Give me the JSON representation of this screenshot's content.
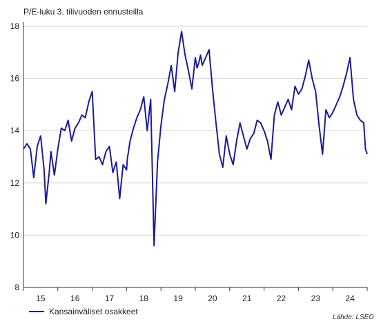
{
  "chart_data": {
    "type": "line",
    "title": "P/E-luku 3. tilivuoden ennusteilla",
    "source": "Lähde: LSEG",
    "x_tick_labels": [
      "15",
      "16",
      "17",
      "18",
      "19",
      "20",
      "21",
      "22",
      "23",
      "24"
    ],
    "x_range": [
      2015.0,
      2025.0
    ],
    "ylim": [
      8,
      18
    ],
    "y_ticks": [
      8,
      10,
      12,
      14,
      16,
      18
    ],
    "grid": {
      "horizontal": true,
      "vertical": false
    },
    "legend_position": "bottom-left",
    "series": [
      {
        "name": "Kansainväliset osakkeet",
        "color": "#1a1a9c",
        "x": [
          2015.0,
          2015.1,
          2015.2,
          2015.3,
          2015.4,
          2015.5,
          2015.6,
          2015.65,
          2015.75,
          2015.8,
          2015.9,
          2016.0,
          2016.1,
          2016.2,
          2016.3,
          2016.4,
          2016.5,
          2016.6,
          2016.7,
          2016.8,
          2016.9,
          2017.0,
          2017.1,
          2017.2,
          2017.3,
          2017.4,
          2017.5,
          2017.6,
          2017.7,
          2017.8,
          2017.9,
          2018.0,
          2018.02,
          2018.1,
          2018.2,
          2018.3,
          2018.4,
          2018.5,
          2018.6,
          2018.7,
          2018.8,
          2018.9,
          2019.0,
          2019.1,
          2019.2,
          2019.3,
          2019.4,
          2019.5,
          2019.6,
          2019.7,
          2019.8,
          2019.9,
          2020.0,
          2020.05,
          2020.1,
          2020.15,
          2020.2,
          2020.3,
          2020.4,
          2020.5,
          2020.6,
          2020.7,
          2020.8,
          2020.9,
          2021.0,
          2021.1,
          2021.2,
          2021.3,
          2021.4,
          2021.5,
          2021.6,
          2021.7,
          2021.8,
          2021.9,
          2022.0,
          2022.1,
          2022.2,
          2022.3,
          2022.4,
          2022.5,
          2022.6,
          2022.7,
          2022.8,
          2022.9,
          2023.0,
          2023.1,
          2023.2,
          2023.3,
          2023.4,
          2023.5,
          2023.6,
          2023.7,
          2023.8,
          2023.9,
          2024.0,
          2024.1,
          2024.2,
          2024.3,
          2024.4,
          2024.5,
          2024.6,
          2024.7,
          2024.8,
          2024.9,
          2024.95,
          2025.0
        ],
        "values": [
          13.3,
          13.5,
          13.3,
          12.2,
          13.4,
          13.8,
          12.5,
          11.2,
          12.4,
          13.2,
          12.3,
          13.3,
          14.1,
          14.0,
          14.4,
          13.6,
          14.1,
          14.3,
          14.6,
          14.5,
          15.1,
          15.5,
          12.9,
          13.0,
          12.7,
          13.2,
          13.4,
          12.4,
          12.8,
          11.4,
          12.7,
          12.5,
          12.9,
          13.6,
          14.1,
          14.5,
          14.8,
          15.3,
          14.0,
          15.2,
          9.6,
          12.8,
          14.2,
          15.2,
          15.8,
          16.5,
          15.5,
          17.0,
          17.8,
          16.9,
          16.3,
          15.6,
          16.8,
          16.4,
          16.6,
          16.9,
          16.5,
          16.8,
          17.1,
          15.6,
          14.3,
          13.1,
          12.6,
          13.8,
          13.1,
          12.7,
          13.6,
          14.3,
          13.8,
          13.3,
          13.7,
          13.9,
          14.4,
          14.3,
          14.0,
          13.6,
          12.9,
          14.6,
          15.1,
          14.6,
          14.9,
          15.2,
          14.8,
          15.7,
          15.4,
          15.6,
          16.1,
          16.7,
          16.0,
          15.5,
          14.2,
          13.1,
          14.8,
          14.5,
          14.7,
          15.0,
          15.3,
          15.7,
          16.2,
          16.8,
          15.2,
          14.6,
          14.4,
          14.3,
          13.3,
          13.1
        ]
      }
    ]
  }
}
